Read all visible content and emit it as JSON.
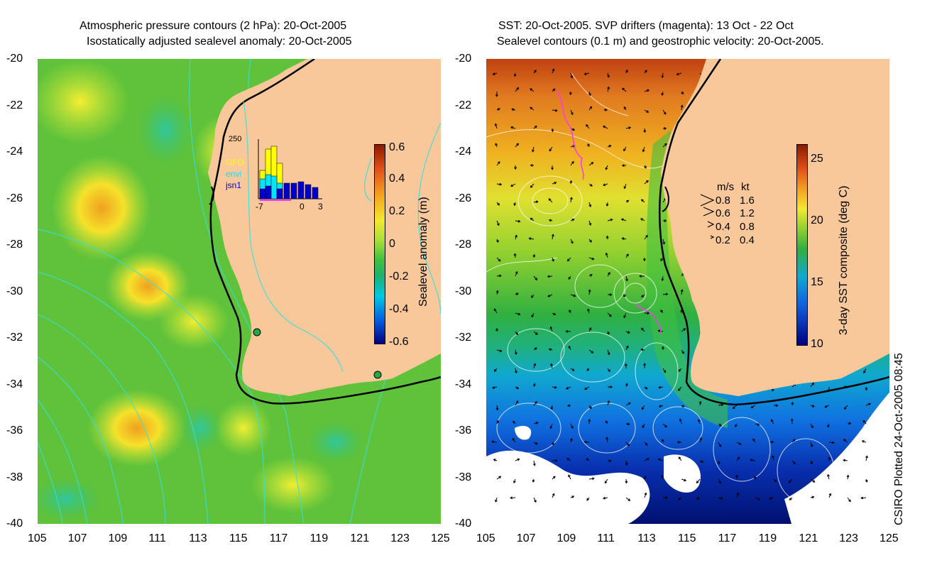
{
  "left": {
    "title_line1": "Atmospheric pressure contours (2 hPa): 20-Oct-2005",
    "title_line2": "Isostatically adjusted sealevel anomaly: 20-Oct-2005",
    "colorbar_label": "Sealevel anomaly (m)",
    "colorbar_ticks": [
      "0.6",
      "0.4",
      "0.2",
      "0",
      "-0.2",
      "-0.4",
      "-0.6"
    ],
    "colorbar_range": [
      -0.6,
      0.6
    ],
    "inset": {
      "y_label": "250",
      "x_ticks": [
        "-7",
        "0",
        "3"
      ],
      "legend": [
        "GFO",
        "envi",
        "jsn1"
      ],
      "legend_colors": [
        "#ffff00",
        "#00e5ff",
        "#0000cc"
      ]
    }
  },
  "right": {
    "title_line1": "SST: 20-Oct-2005. SVP drifters (magenta): 13 Oct - 22 Oct",
    "title_line2": "Sealevel contours (0.1 m) and geostrophic velocity: 20-Oct-2005.",
    "colorbar_label": "3-day SST composite (deg C)",
    "colorbar_ticks": [
      "25",
      "20",
      "15",
      "10"
    ],
    "colorbar_range": [
      10,
      26
    ],
    "velocity_legend": {
      "header_ms": "m/s",
      "header_kt": "kt",
      "rows": [
        {
          "ms": "0.8",
          "kt": "1.6"
        },
        {
          "ms": "0.6",
          "kt": "1.2"
        },
        {
          "ms": "0.4",
          "kt": "0.8"
        },
        {
          "ms": "0.2",
          "kt": "0.4"
        }
      ]
    }
  },
  "axes": {
    "x_ticks": [
      "105",
      "107",
      "109",
      "111",
      "113",
      "115",
      "117",
      "119",
      "121",
      "123",
      "125"
    ],
    "y_ticks": [
      "-20",
      "-22",
      "-24",
      "-26",
      "-28",
      "-30",
      "-32",
      "-34",
      "-36",
      "-38",
      "-40"
    ],
    "x_range": [
      105,
      125
    ],
    "y_range": [
      -40,
      -20
    ]
  },
  "credit": "CSIRO Plotted 24-Oct-2005 08:45",
  "colors": {
    "land": "#f8c89a",
    "coast": "#000000",
    "isobar": "#33e0e0",
    "drifter": "#ff33ff"
  }
}
